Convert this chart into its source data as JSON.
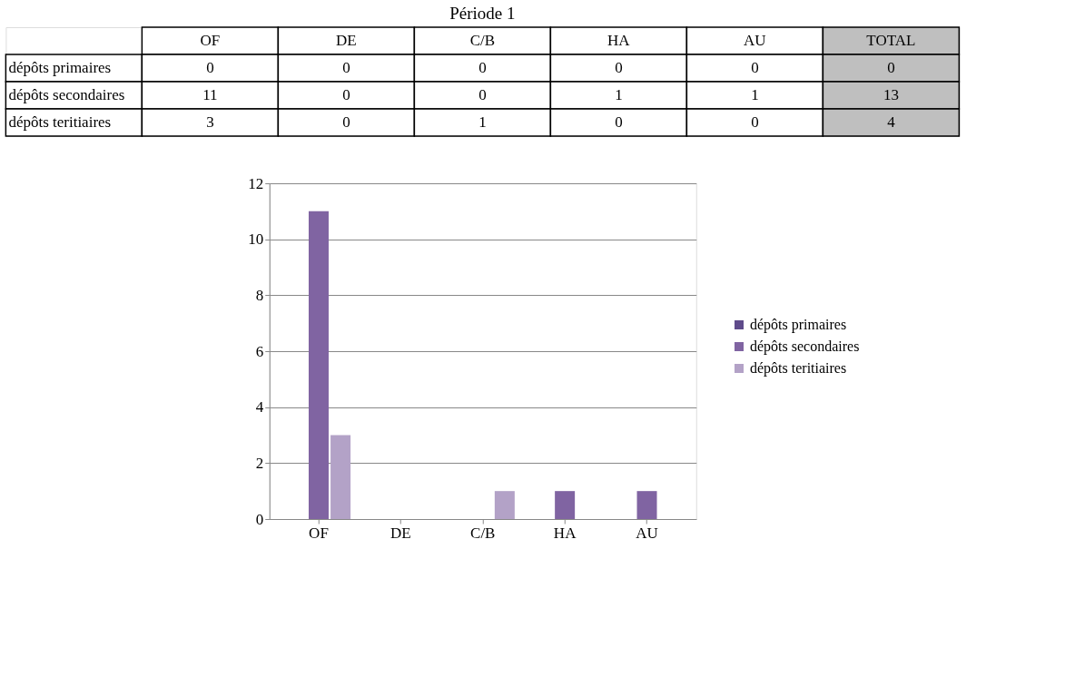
{
  "chart_data": [
    {
      "type": "heatmap",
      "title": "Période 1",
      "categories": [
        "OF",
        "DE",
        "C/B",
        "HA",
        "AU",
        "TOTAL"
      ],
      "y_categories": [
        "dépôts primaires",
        "dépôts secondaires",
        "dépôts teritiaires"
      ],
      "cells": [
        [
          0,
          0,
          0,
          0,
          0,
          0
        ],
        [
          11,
          0,
          0,
          1,
          1,
          13
        ],
        [
          3,
          0,
          1,
          0,
          0,
          4
        ]
      ],
      "data_labels": true
    },
    {
      "type": "bar",
      "categories": [
        "OF",
        "DE",
        "C/B",
        "HA",
        "AU"
      ],
      "series": [
        {
          "name": "dépôts primaires",
          "color": "#5f4b8b",
          "values": [
            0,
            0,
            0,
            0,
            0
          ]
        },
        {
          "name": "dépôts secondaires",
          "color": "#8064a2",
          "values": [
            11,
            0,
            0,
            1,
            1
          ]
        },
        {
          "name": "dépôts teritiaires",
          "color": "#b3a2c7",
          "values": [
            3,
            0,
            1,
            0,
            0
          ]
        }
      ],
      "ylim": [
        0,
        12
      ],
      "yticks": [
        0,
        2,
        4,
        6,
        8,
        10,
        12
      ],
      "grid": "y",
      "legend": "right"
    }
  ]
}
